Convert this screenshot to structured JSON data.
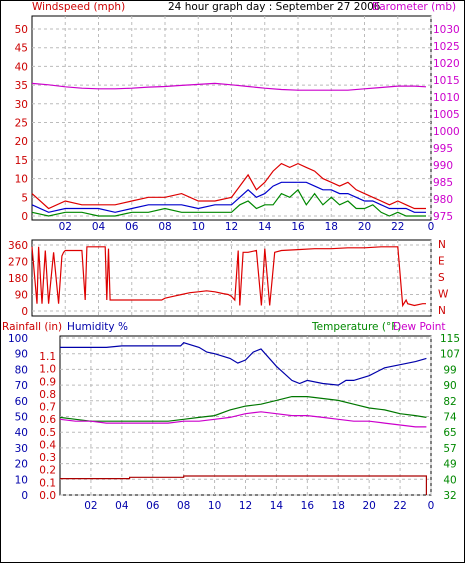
{
  "header": {
    "left_label": "Windspeed (mph)",
    "center_label": "24 hour graph day : September 27 2006",
    "right_label": "Barometer (mb)"
  },
  "colors": {
    "gust": "#dd0000",
    "average": "#0000cc",
    "low": "#008800",
    "barometer": "#cc00cc",
    "direction": "#dd0000",
    "humidity": "#0000aa",
    "temperature": "#007700",
    "dewpoint": "#cc00cc",
    "rainfall": "#aa0000",
    "grid": "#bbbbbb",
    "axis_text_red": "#cc0000",
    "axis_text_blue": "#0000aa",
    "axis_text_green": "#008800",
    "axis_text_magenta": "#cc00cc"
  },
  "chart_data": [
    {
      "type": "line",
      "title": "24 hour graph day : September 27 2006",
      "xlabel": "",
      "x_ticks": [
        "02",
        "04",
        "06",
        "08",
        "10",
        "12",
        "14",
        "16",
        "18",
        "20",
        "22",
        "0"
      ],
      "xlim": [
        0,
        24
      ],
      "left_axis": {
        "label": "Windspeed (mph)",
        "ticks": [
          "0",
          "5",
          "10",
          "15",
          "20",
          "25",
          "30",
          "35",
          "40",
          "45",
          "50"
        ],
        "ylim": [
          0,
          50
        ]
      },
      "right_axis": {
        "label": "Barometer (mb)",
        "ticks": [
          "975",
          "980",
          "985",
          "990",
          "995",
          "1000",
          "1005",
          "1010",
          "1015",
          "1020",
          "1025",
          "1030"
        ],
        "ylim": [
          975,
          1030
        ]
      },
      "series": [
        {
          "axis": "left",
          "x": [
            0,
            1,
            2,
            3,
            4,
            5,
            6,
            7,
            8,
            9,
            10,
            11,
            12,
            12.5,
            13,
            13.5,
            14,
            14.5,
            15,
            15.5,
            16,
            16.5,
            17,
            17.5,
            18,
            18.5,
            19,
            19.5,
            20,
            20.5,
            21,
            21.5,
            22,
            22.5,
            23,
            23.7
          ],
          "values": [
            6,
            2,
            4,
            3,
            3,
            3,
            4,
            5,
            5,
            6,
            4,
            4,
            5,
            8,
            11,
            7,
            9,
            12,
            14,
            13,
            14,
            13,
            12,
            10,
            9,
            8,
            9,
            7,
            6,
            5,
            4,
            3,
            4,
            3,
            2,
            2
          ]
        },
        {
          "axis": "left",
          "x": [
            0,
            1,
            2,
            3,
            4,
            5,
            6,
            7,
            8,
            9,
            10,
            11,
            12,
            12.5,
            13,
            13.5,
            14,
            14.5,
            15,
            15.5,
            16,
            16.5,
            17,
            17.5,
            18,
            18.5,
            19,
            19.5,
            20,
            20.5,
            21,
            21.5,
            22,
            22.5,
            23,
            23.7
          ],
          "values": [
            3,
            1,
            2,
            2,
            2,
            1,
            2,
            3,
            3,
            3,
            2,
            3,
            3,
            5,
            7,
            5,
            6,
            8,
            9,
            9,
            9,
            9,
            8,
            7,
            7,
            6,
            6,
            5,
            4,
            4,
            3,
            2,
            2,
            2,
            1,
            1
          ]
        },
        {
          "axis": "left",
          "x": [
            0,
            1,
            2,
            3,
            4,
            5,
            6,
            7,
            8,
            9,
            10,
            11,
            12,
            12.5,
            13,
            13.5,
            14,
            14.5,
            15,
            15.5,
            16,
            16.5,
            17,
            17.5,
            18,
            18.5,
            19,
            19.5,
            20,
            20.5,
            21,
            21.5,
            22,
            22.5,
            23,
            23.7
          ],
          "values": [
            1,
            0,
            1,
            1,
            0,
            0,
            1,
            1,
            2,
            1,
            1,
            1,
            1,
            3,
            4,
            2,
            3,
            3,
            6,
            5,
            7,
            3,
            6,
            3,
            5,
            3,
            4,
            2,
            2,
            3,
            1,
            0,
            1,
            0,
            0,
            0
          ]
        },
        {
          "axis": "right",
          "x": [
            0,
            1,
            2,
            3,
            4,
            5,
            6,
            7,
            8,
            9,
            10,
            11,
            12,
            13,
            14,
            15,
            16,
            17,
            18,
            19,
            20,
            21,
            22,
            23,
            23.7
          ],
          "values": [
            1014,
            1013.6,
            1013,
            1012.6,
            1012.4,
            1012.4,
            1012.6,
            1012.9,
            1013.1,
            1013.4,
            1013.7,
            1014,
            1013.6,
            1013.1,
            1012.6,
            1012.2,
            1012,
            1012,
            1012,
            1012,
            1012.4,
            1012.8,
            1013.2,
            1013.2,
            1013
          ]
        }
      ]
    },
    {
      "type": "line",
      "left_axis": {
        "ticks": [
          "0",
          "90",
          "180",
          "270",
          "360"
        ],
        "ylim": [
          0,
          360
        ]
      },
      "right_axis": {
        "ticks": [
          "N",
          "W",
          "S",
          "E",
          "N"
        ]
      },
      "series": [
        {
          "x": [
            0,
            0.3,
            0.4,
            0.6,
            0.8,
            1,
            1.3,
            1.6,
            1.8,
            1.9,
            2,
            3,
            3.2,
            3.3,
            4.4,
            4.5,
            4.6,
            4.7,
            5,
            6,
            6.5,
            7,
            7.5,
            7.8,
            8,
            8.5,
            9,
            9.5,
            10,
            10.5,
            11,
            11.5,
            11.8,
            12,
            12.2,
            12.4,
            12.5,
            12.7,
            13,
            13.5,
            13.8,
            14,
            14.3,
            14.6,
            15,
            16,
            17,
            18,
            19,
            20,
            21,
            21.5,
            22,
            22.3,
            22.5,
            22.6,
            23,
            23.5,
            23.7
          ],
          "values": [
            350,
            40,
            350,
            40,
            330,
            40,
            320,
            40,
            300,
            320,
            330,
            330,
            60,
            350,
            350,
            60,
            340,
            60,
            60,
            60,
            60,
            60,
            60,
            60,
            70,
            80,
            90,
            100,
            105,
            110,
            105,
            95,
            90,
            80,
            60,
            330,
            30,
            320,
            320,
            330,
            30,
            340,
            30,
            320,
            330,
            335,
            340,
            340,
            345,
            345,
            350,
            350,
            350,
            30,
            60,
            40,
            30,
            40,
            40
          ]
        }
      ]
    },
    {
      "type": "line",
      "left_axis_rain": {
        "label": "Rainfall (in)",
        "ticks": [
          "0.0",
          "0.1",
          "0.2",
          "0.3",
          "0.4",
          "0.5",
          "0.6",
          "0.7",
          "0.8",
          "0.9",
          "1.0",
          "1.1"
        ],
        "ylim": [
          0,
          1.2
        ]
      },
      "left_axis_humidity": {
        "label": "Humidity %",
        "ticks": [
          "0",
          "10",
          "20",
          "30",
          "40",
          "50",
          "60",
          "70",
          "80",
          "90",
          "100"
        ],
        "ylim": [
          0,
          100
        ]
      },
      "right_axis": {
        "label": "Temperature (°F)",
        "label2": "Dew Point",
        "ticks": [
          "32",
          "40",
          "49",
          "57",
          "65",
          "74",
          "82",
          "90",
          "99",
          "107",
          "115"
        ],
        "ylim": [
          32,
          115
        ]
      },
      "series": [
        {
          "axis": "humidity",
          "x": [
            0,
            1,
            2,
            3,
            4,
            5,
            6,
            7,
            7.8,
            8,
            9,
            9.5,
            10,
            11,
            11.5,
            12,
            12.5,
            13,
            14,
            15,
            15.5,
            16,
            17,
            18,
            18.5,
            19,
            20,
            21,
            22,
            23,
            23.7
          ],
          "values": [
            94,
            94,
            94,
            94,
            95,
            95,
            95,
            95,
            95,
            97,
            94,
            91,
            90,
            87,
            84,
            86,
            91,
            93,
            82,
            73,
            71,
            73,
            71,
            70,
            73,
            73,
            76,
            81,
            83,
            85,
            87
          ]
        },
        {
          "axis": "temperature",
          "x": [
            0,
            1,
            2,
            3,
            4,
            5,
            6,
            7,
            8,
            9,
            10,
            11,
            12,
            13,
            14,
            15,
            16,
            17,
            18,
            19,
            20,
            21,
            22,
            23,
            23.7
          ],
          "values": [
            73,
            72,
            71,
            71,
            71,
            71,
            71,
            71,
            72,
            73,
            74,
            77,
            79,
            80,
            82,
            84,
            84,
            83,
            82,
            80,
            78,
            77,
            75,
            74,
            73
          ]
        },
        {
          "axis": "temperature",
          "x": [
            0,
            1,
            2,
            3,
            4,
            5,
            6,
            7,
            8,
            9,
            10,
            11,
            12,
            13,
            14,
            15,
            16,
            17,
            18,
            19,
            20,
            21,
            22,
            23,
            23.7
          ],
          "values": [
            72,
            71,
            71,
            70,
            70,
            70,
            70,
            70,
            71,
            71,
            72,
            73,
            75,
            76,
            75,
            74,
            74,
            73,
            72,
            71,
            71,
            70,
            69,
            68,
            68
          ]
        },
        {
          "axis": "rain",
          "x": [
            0,
            4.5,
            4.5,
            8,
            8,
            23.7,
            23.7
          ],
          "values": [
            0.13,
            0.13,
            0.14,
            0.14,
            0.15,
            0.15,
            0.0
          ]
        }
      ]
    }
  ],
  "series_names": {
    "rain": "Rainfall (in)",
    "humidity": "Humidity %",
    "temperature": "Temperature (°F)",
    "dewpoint": "Dew Point"
  }
}
